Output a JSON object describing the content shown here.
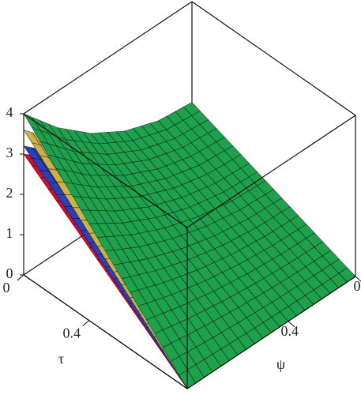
{
  "chart_data": {
    "type": "surface",
    "xlabel": "τ",
    "ylabel": "ψ",
    "x": [
      0,
      0.2,
      0.4,
      0.6,
      0.8,
      1
    ],
    "y": [
      0,
      0.2,
      0.4,
      0.6,
      0.8,
      1
    ],
    "xlim": [
      0,
      1
    ],
    "ylim": [
      0,
      1
    ],
    "zlim": [
      0,
      4
    ],
    "xticks": [
      0,
      0.4
    ],
    "yticks": [
      0,
      0.4
    ],
    "zticks": [
      0,
      1,
      2,
      3,
      4
    ],
    "series": [
      {
        "color": "#c8102e",
        "values": [
          [
            1.13,
            1.2,
            1.43,
            1.8,
            2.33,
            3
          ],
          [
            0.9,
            0.96,
            1.14,
            1.44,
            1.86,
            2.4
          ],
          [
            0.68,
            0.72,
            0.86,
            1.08,
            1.4,
            1.8
          ],
          [
            0.45,
            0.48,
            0.57,
            0.72,
            0.93,
            1.2
          ],
          [
            0.23,
            0.24,
            0.29,
            0.36,
            0.47,
            0.6
          ],
          [
            0,
            0,
            0,
            0,
            0,
            0
          ]
        ]
      },
      {
        "color": "#2d3fb8",
        "values": [
          [
            1.2,
            1.28,
            1.52,
            1.92,
            2.48,
            3.2
          ],
          [
            0.96,
            1.02,
            1.22,
            1.54,
            1.98,
            2.56
          ],
          [
            0.72,
            0.77,
            0.91,
            1.15,
            1.49,
            1.92
          ],
          [
            0.48,
            0.51,
            0.61,
            0.77,
            0.99,
            1.28
          ],
          [
            0.24,
            0.26,
            0.3,
            0.38,
            0.5,
            0.64
          ],
          [
            0,
            0,
            0,
            0,
            0,
            0
          ]
        ]
      },
      {
        "color": "#c9b24a",
        "values": [
          [
            1.35,
            1.44,
            1.71,
            2.16,
            2.79,
            3.6
          ],
          [
            1.08,
            1.15,
            1.37,
            1.73,
            2.23,
            2.88
          ],
          [
            0.81,
            0.86,
            1.03,
            1.3,
            1.67,
            2.16
          ],
          [
            0.54,
            0.58,
            0.68,
            0.86,
            1.12,
            1.44
          ],
          [
            0.27,
            0.29,
            0.34,
            0.43,
            0.56,
            0.72
          ],
          [
            0,
            0,
            0,
            0,
            0,
            0
          ]
        ]
      },
      {
        "color": "#1fa04c",
        "values": [
          [
            1.5,
            1.6,
            1.9,
            2.4,
            3.1,
            4
          ],
          [
            1.2,
            1.28,
            1.52,
            1.92,
            2.48,
            3.2
          ],
          [
            0.9,
            0.96,
            1.14,
            1.44,
            1.86,
            2.4
          ],
          [
            0.6,
            0.64,
            0.76,
            0.96,
            1.24,
            1.6
          ],
          [
            0.3,
            0.32,
            0.38,
            0.48,
            0.62,
            0.8
          ],
          [
            0,
            0,
            0,
            0,
            0,
            0
          ]
        ]
      }
    ]
  }
}
